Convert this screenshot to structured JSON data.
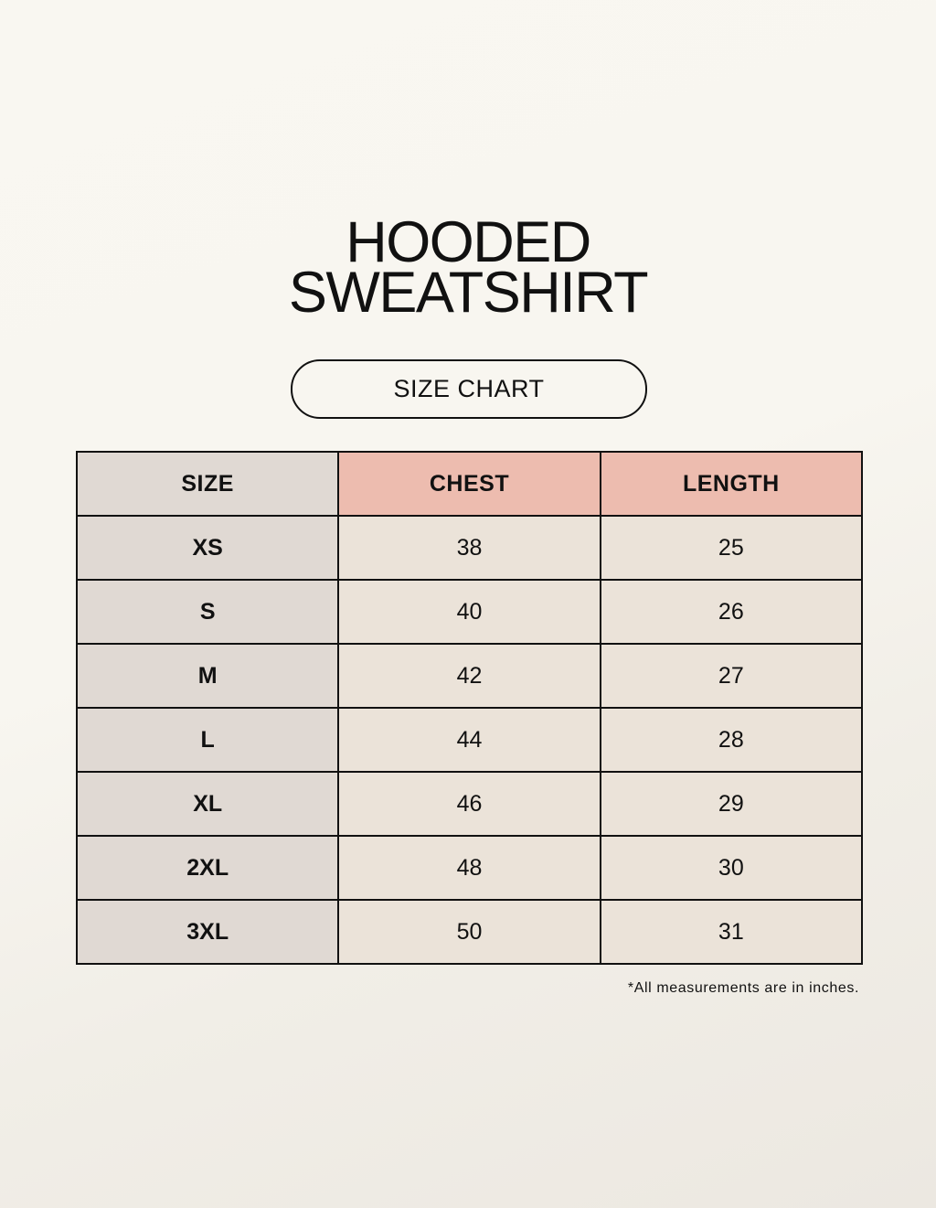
{
  "title": {
    "line1": "HOODED",
    "line2": "SWEATSHIRT"
  },
  "badge": "SIZE CHART",
  "table": {
    "headers": [
      "SIZE",
      "CHEST",
      "LENGTH"
    ],
    "rows": [
      [
        "XS",
        "38",
        "25"
      ],
      [
        "S",
        "40",
        "26"
      ],
      [
        "M",
        "42",
        "27"
      ],
      [
        "L",
        "44",
        "28"
      ],
      [
        "XL",
        "46",
        "29"
      ],
      [
        "2XL",
        "48",
        "30"
      ],
      [
        "3XL",
        "50",
        "31"
      ]
    ]
  },
  "note": "*All measurements are in inches.",
  "colors": {
    "size_column": "#e0d9d3",
    "header_highlight": "#edbcaf",
    "cell": "#ebe3d9",
    "background": "#f8f6f0"
  }
}
